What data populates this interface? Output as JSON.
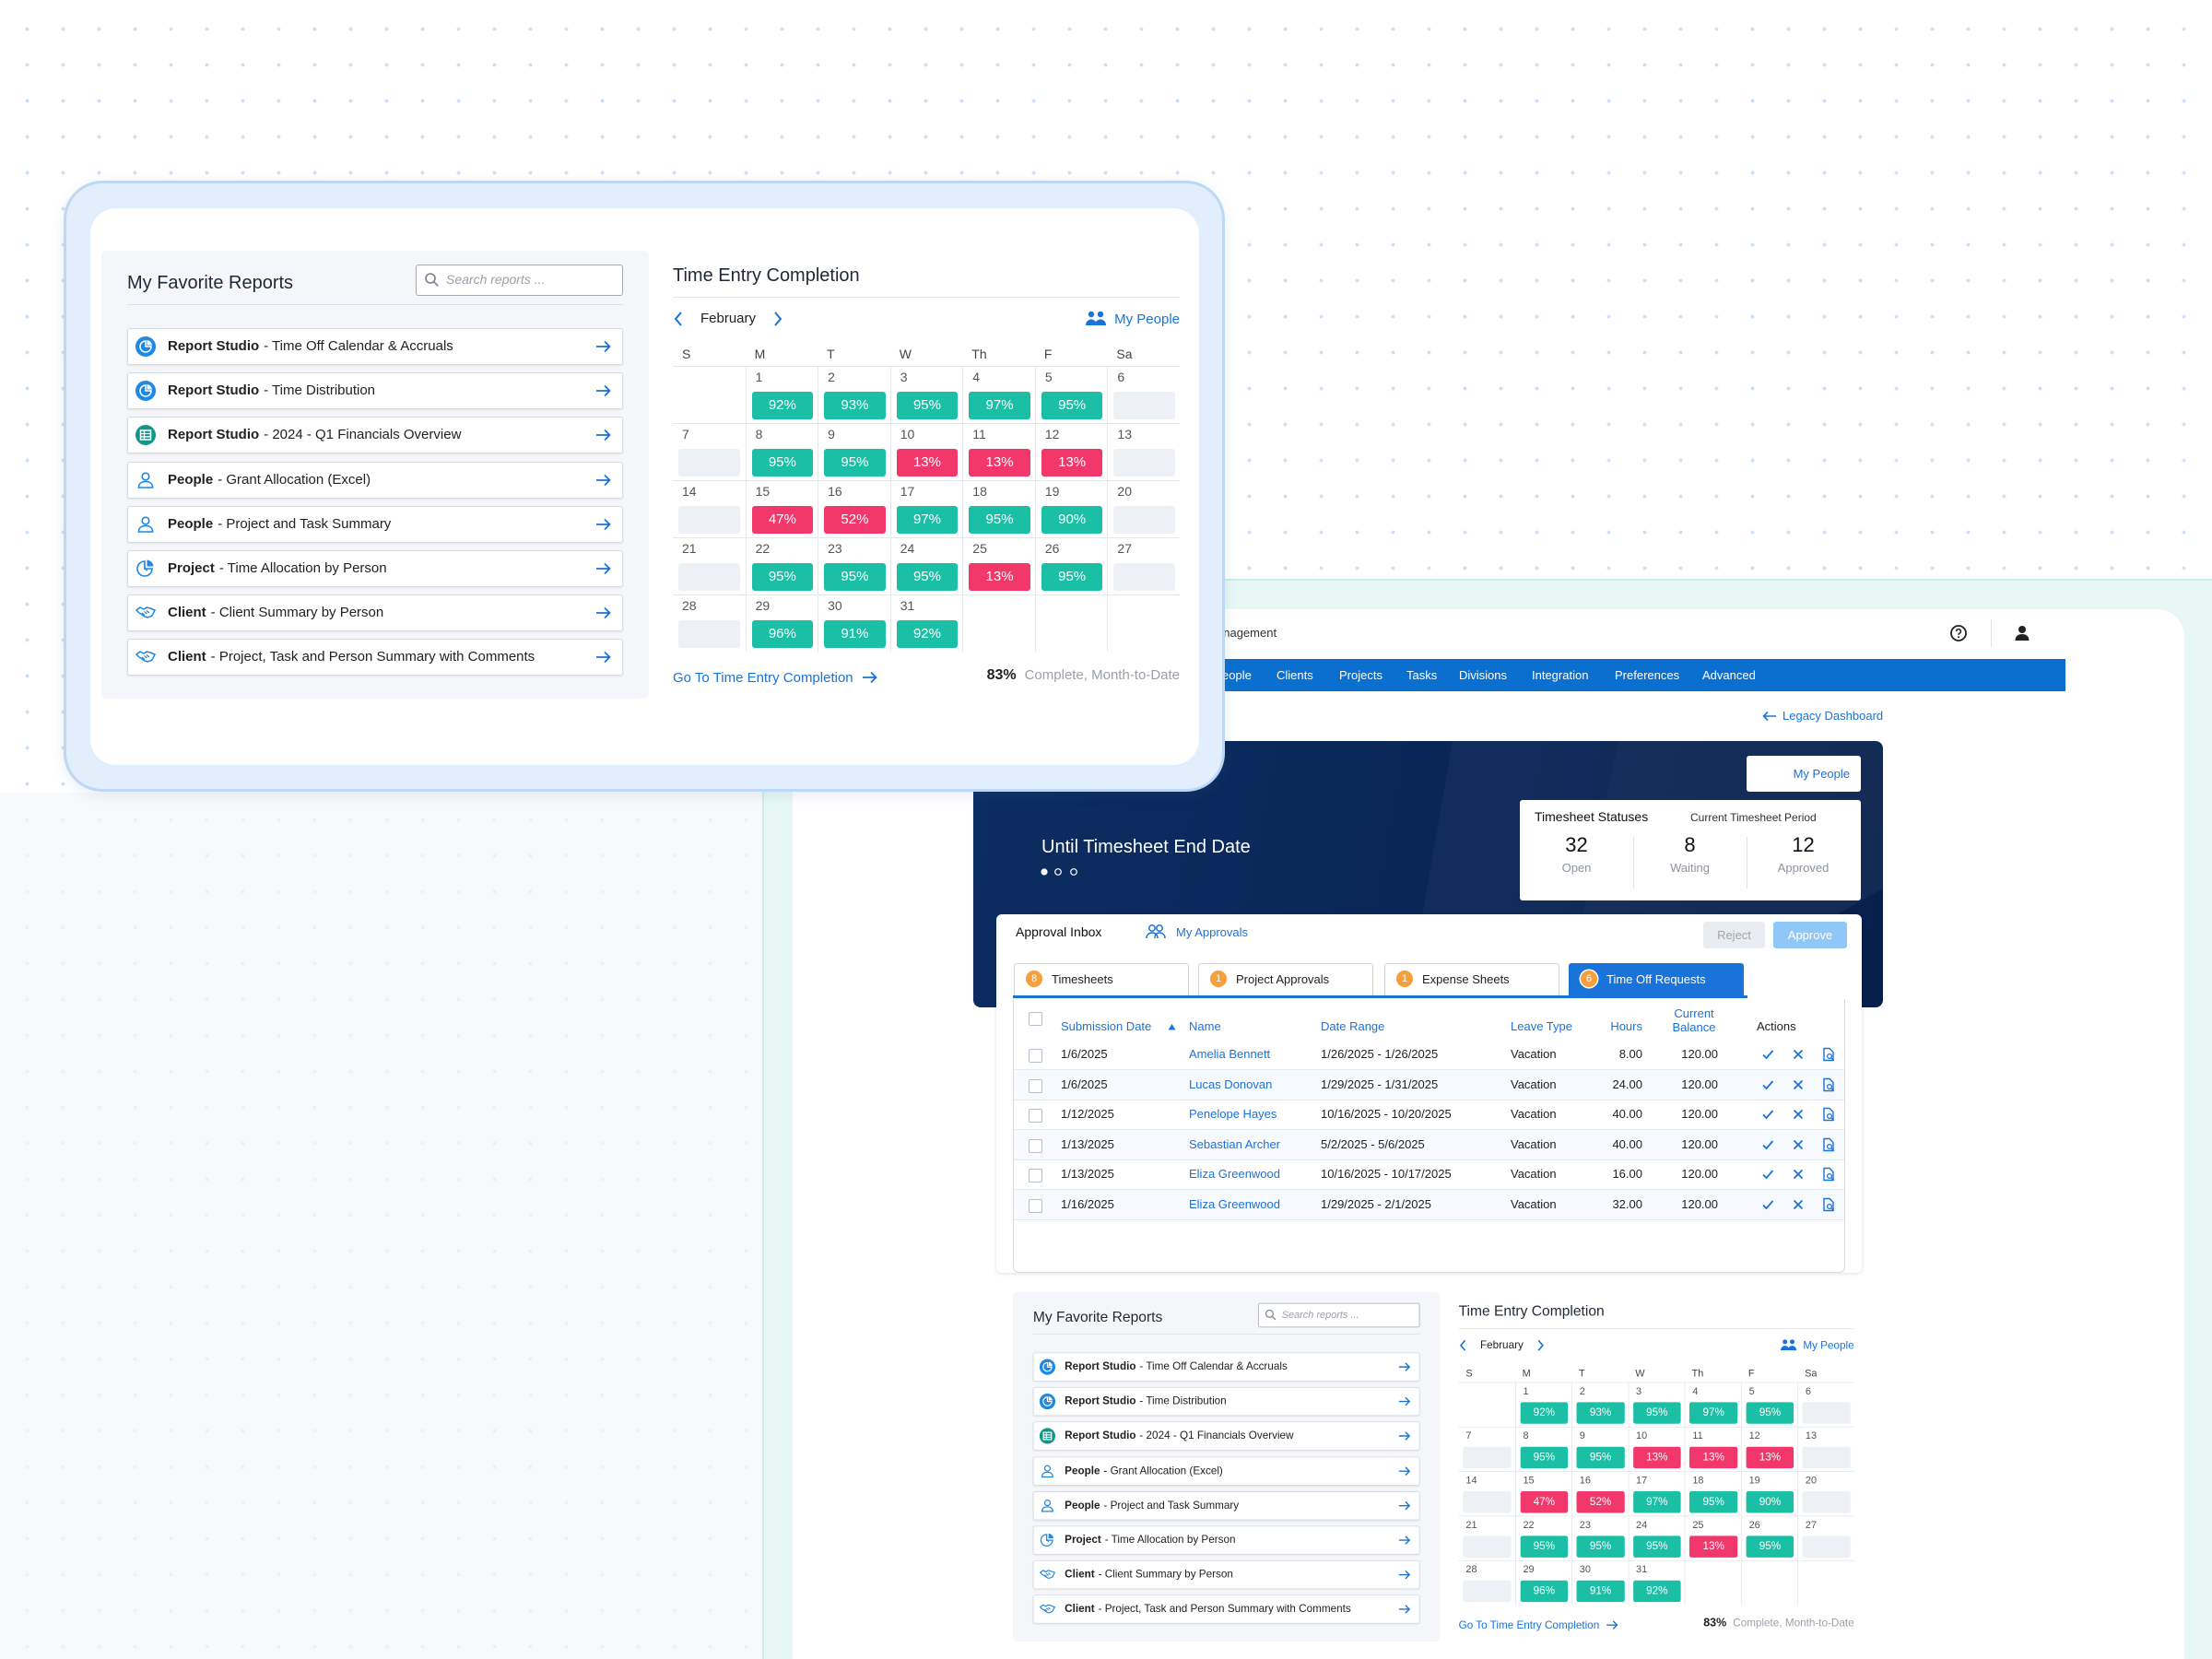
{
  "header": {
    "app_title": "anagement"
  },
  "nav": [
    "eople",
    "Clients",
    "Projects",
    "Tasks",
    "Divisions",
    "Integration",
    "Preferences",
    "Advanced"
  ],
  "legacy_link": "Legacy Dashboard",
  "banner": {
    "my_people": "My People",
    "headline": "Until Timesheet End Date"
  },
  "timesheet_statuses": {
    "title": "Timesheet Statuses",
    "period": "Current Timesheet Period",
    "stats": [
      {
        "value": 32,
        "label": "Open"
      },
      {
        "value": 8,
        "label": "Waiting"
      },
      {
        "value": 12,
        "label": "Approved"
      }
    ]
  },
  "approval_inbox": {
    "title": "Approval Inbox",
    "my_approvals": "My Approvals",
    "reject": "Reject",
    "approve": "Approve",
    "tabs": [
      {
        "count": 8,
        "label": "Timesheets"
      },
      {
        "count": 1,
        "label": "Project Approvals"
      },
      {
        "count": 1,
        "label": "Expense Sheets"
      },
      {
        "count": 6,
        "label": "Time Off Requests"
      }
    ],
    "active_tab": 3,
    "columns": [
      "Submission Date",
      "Name",
      "Date Range",
      "Leave Type",
      "Hours",
      "Current Balance",
      "Actions"
    ],
    "rows": [
      [
        "1/6/2025",
        "Amelia Bennett",
        "1/26/2025 - 1/26/2025",
        "Vacation",
        "8.00",
        "120.00"
      ],
      [
        "1/6/2025",
        "Lucas Donovan",
        "1/29/2025 - 1/31/2025",
        "Vacation",
        "24.00",
        "120.00"
      ],
      [
        "1/12/2025",
        "Penelope Hayes",
        "10/16/2025 - 10/20/2025",
        "Vacation",
        "40.00",
        "120.00"
      ],
      [
        "1/13/2025",
        "Sebastian Archer",
        "5/2/2025 - 5/6/2025",
        "Vacation",
        "40.00",
        "120.00"
      ],
      [
        "1/13/2025",
        "Eliza Greenwood",
        "10/16/2025 - 10/17/2025",
        "Vacation",
        "16.00",
        "120.00"
      ],
      [
        "1/16/2025",
        "Eliza Greenwood",
        "1/29/2025 - 2/1/2025",
        "Vacation",
        "32.00",
        "120.00"
      ]
    ]
  },
  "favorite_reports": {
    "title": "My Favorite Reports",
    "search_placeholder": "Search reports ...",
    "reports": [
      {
        "category": "Report Studio",
        "title": "- Time Off Calendar & Accruals"
      },
      {
        "category": "Report Studio",
        "title": "- Time Distribution"
      },
      {
        "category": "Report Studio",
        "title": "- 2024 - Q1 Financials Overview"
      },
      {
        "category": "People",
        "title": "- Grant Allocation (Excel)"
      },
      {
        "category": "People",
        "title": "- Project and Task Summary"
      },
      {
        "category": "Project",
        "title": "- Time Allocation by Person"
      },
      {
        "category": "Client",
        "title": "- Client Summary by Person"
      },
      {
        "category": "Client",
        "title": "- Project, Task and Person Summary with Comments"
      }
    ]
  },
  "time_entry": {
    "title": "Time Entry Completion",
    "month": "February",
    "my_people": "My People",
    "weekdays": [
      "S",
      "M",
      "T",
      "W",
      "Th",
      "F",
      "Sa"
    ],
    "weeks": [
      [
        null,
        {
          "day": 1,
          "value": "92%",
          "color": "#1bbfa6"
        },
        {
          "day": 2,
          "value": "93%",
          "color": "#1bbfa6"
        },
        {
          "day": 3,
          "value": "95%",
          "color": "#1bbfa6"
        },
        {
          "day": 4,
          "value": "97%",
          "color": "#1bbfa6"
        },
        {
          "day": 5,
          "value": "95%",
          "color": "#1bbfa6"
        },
        {
          "day": 6
        }
      ],
      [
        {
          "day": 7
        },
        {
          "day": 8,
          "value": "95%",
          "color": "#1bbfa6"
        },
        {
          "day": 9,
          "value": "95%",
          "color": "#1bbfa6"
        },
        {
          "day": 10,
          "value": "13%",
          "color": "#f2386b"
        },
        {
          "day": 11,
          "value": "13%",
          "color": "#f2386b"
        },
        {
          "day": 12,
          "value": "13%",
          "color": "#f2386b"
        },
        {
          "day": 13
        }
      ],
      [
        {
          "day": 14
        },
        {
          "day": 15,
          "value": "47%",
          "color": "#f2386b"
        },
        {
          "day": 16,
          "value": "52%",
          "color": "#f2386b"
        },
        {
          "day": 17,
          "value": "97%",
          "color": "#1bbfa6"
        },
        {
          "day": 18,
          "value": "95%",
          "color": "#1bbfa6"
        },
        {
          "day": 19,
          "value": "90%",
          "color": "#1bbfa6"
        },
        {
          "day": 20
        }
      ],
      [
        {
          "day": 21
        },
        {
          "day": 22,
          "value": "95%",
          "color": "#1bbfa6"
        },
        {
          "day": 23,
          "value": "95%",
          "color": "#1bbfa6"
        },
        {
          "day": 24,
          "value": "95%",
          "color": "#1bbfa6"
        },
        {
          "day": 25,
          "value": "13%",
          "color": "#f2386b"
        },
        {
          "day": 26,
          "value": "95%",
          "color": "#1bbfa6"
        },
        {
          "day": 27
        }
      ],
      [
        {
          "day": 28
        },
        {
          "day": 29,
          "value": "96%",
          "color": "#1bbfa6"
        },
        {
          "day": 30,
          "value": "91%",
          "color": "#1bbfa6"
        },
        {
          "day": 31,
          "value": "92%",
          "color": "#1bbfa6"
        },
        null,
        null,
        null
      ]
    ],
    "link": "Go To Time Entry Completion",
    "summary_value": "83%",
    "summary_label": "Complete, Month-to-Date"
  }
}
